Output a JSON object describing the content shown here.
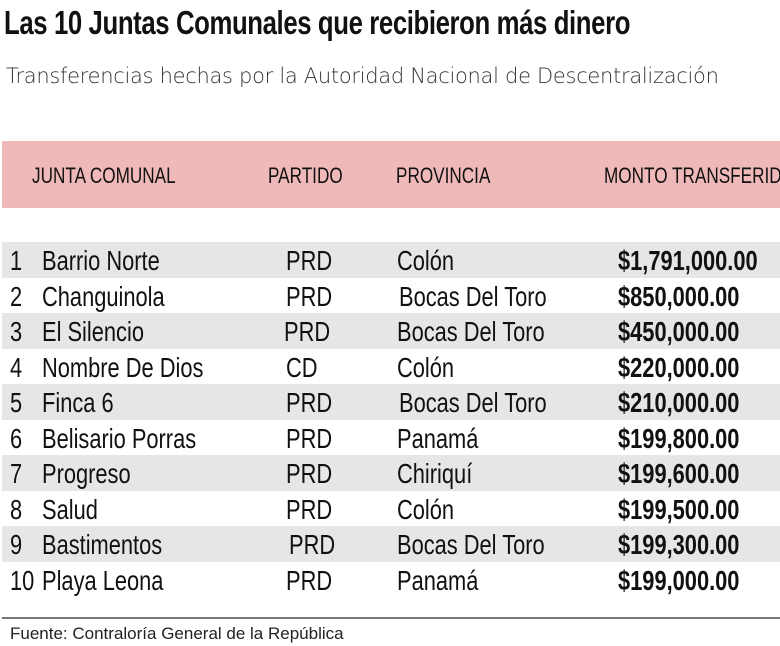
{
  "title": "Las 10 Juntas Comunales que recibieron más dinero",
  "subtitle": "Transferencias hechas por la Autoridad Nacional de Descentralización",
  "source": "Fuente: Contraloría General de la República",
  "colors": {
    "header_bg": "#f0b9b9",
    "stripe_bg": "#e6e6e8"
  },
  "chart_data": {
    "type": "table",
    "columns": [
      "JUNTA COMUNAL",
      "PARTIDO",
      "PROVINCIA",
      "MONTO TRANSFERIDO"
    ],
    "rows": [
      {
        "rank": "1",
        "junta": "Barrio Norte",
        "partido": "PRD",
        "provincia": "Colón",
        "monto": "$1,791,000.00"
      },
      {
        "rank": "2",
        "junta": "Changuinola",
        "partido": "PRD",
        "provincia": "Bocas Del Toro",
        "monto": "$850,000.00"
      },
      {
        "rank": "3",
        "junta": "El Silencio",
        "partido": "PRD",
        "provincia": "Bocas Del Toro",
        "monto": "$450,000.00"
      },
      {
        "rank": "4",
        "junta": "Nombre De Dios",
        "partido": "CD",
        "provincia": "Colón",
        "monto": "$220,000.00"
      },
      {
        "rank": "5",
        "junta": "Finca 6",
        "partido": "PRD",
        "provincia": "Bocas Del Toro",
        "monto": "$210,000.00"
      },
      {
        "rank": "6",
        "junta": "Belisario Porras",
        "partido": "PRD",
        "provincia": "Panamá",
        "monto": "$199,800.00"
      },
      {
        "rank": "7",
        "junta": "Progreso",
        "partido": "PRD",
        "provincia": "Chiriquí",
        "monto": "$199,600.00"
      },
      {
        "rank": "8",
        "junta": "Salud",
        "partido": "PRD",
        "provincia": "Colón",
        "monto": "$199,500.00"
      },
      {
        "rank": "9",
        "junta": "Bastimentos",
        "partido": "PRD",
        "provincia": "Bocas Del Toro",
        "monto": "$199,300.00"
      },
      {
        "rank": "10",
        "junta": "Playa Leona",
        "partido": "PRD",
        "provincia": "Panamá",
        "monto": "$199,000.00"
      }
    ]
  }
}
